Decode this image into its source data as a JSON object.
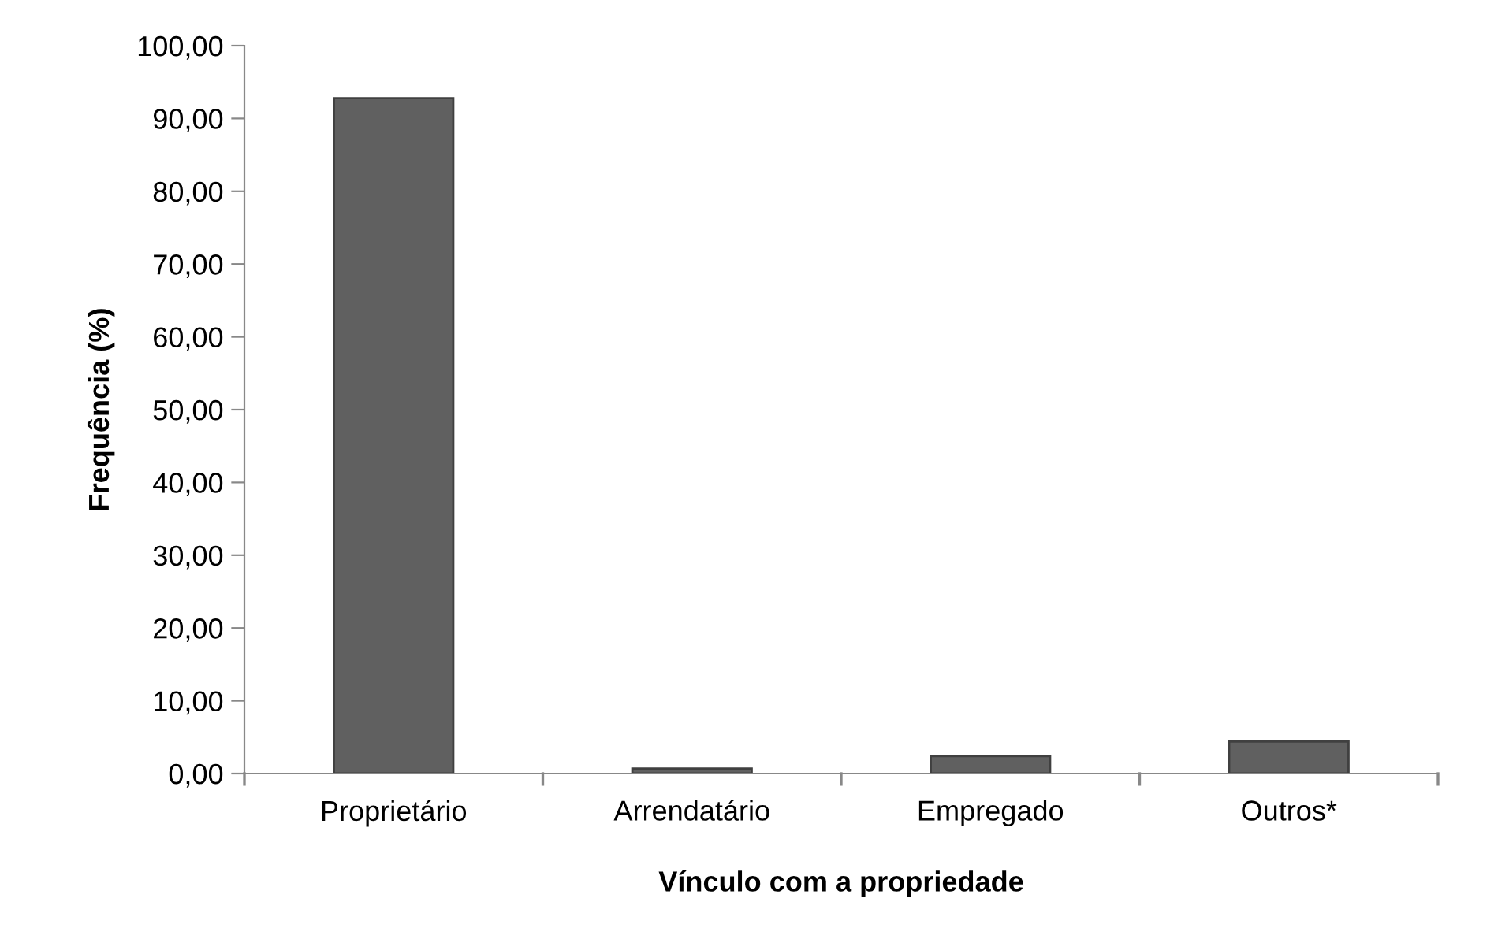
{
  "chart_data": {
    "type": "bar",
    "xlabel": "Vínculo com a propriedade",
    "ylabel": "Frequência (%)",
    "categories": [
      "Proprietário",
      "Arrendatário",
      "Empregado",
      "Outros*"
    ],
    "values": [
      92.8,
      0.7,
      2.4,
      4.4
    ],
    "color": "#606060",
    "ylim": [
      0,
      100
    ],
    "yticks": [
      {
        "value": 0,
        "label": "0,00"
      },
      {
        "value": 10,
        "label": "10,00"
      },
      {
        "value": 20,
        "label": "20,00"
      },
      {
        "value": 30,
        "label": "30,00"
      },
      {
        "value": 40,
        "label": "40,00"
      },
      {
        "value": 50,
        "label": "50,00"
      },
      {
        "value": 60,
        "label": "60,00"
      },
      {
        "value": 70,
        "label": "70,00"
      },
      {
        "value": 80,
        "label": "80,00"
      },
      {
        "value": 90,
        "label": "90,00"
      },
      {
        "value": 100,
        "label": "100,00"
      }
    ],
    "grid": false,
    "legend": false
  }
}
